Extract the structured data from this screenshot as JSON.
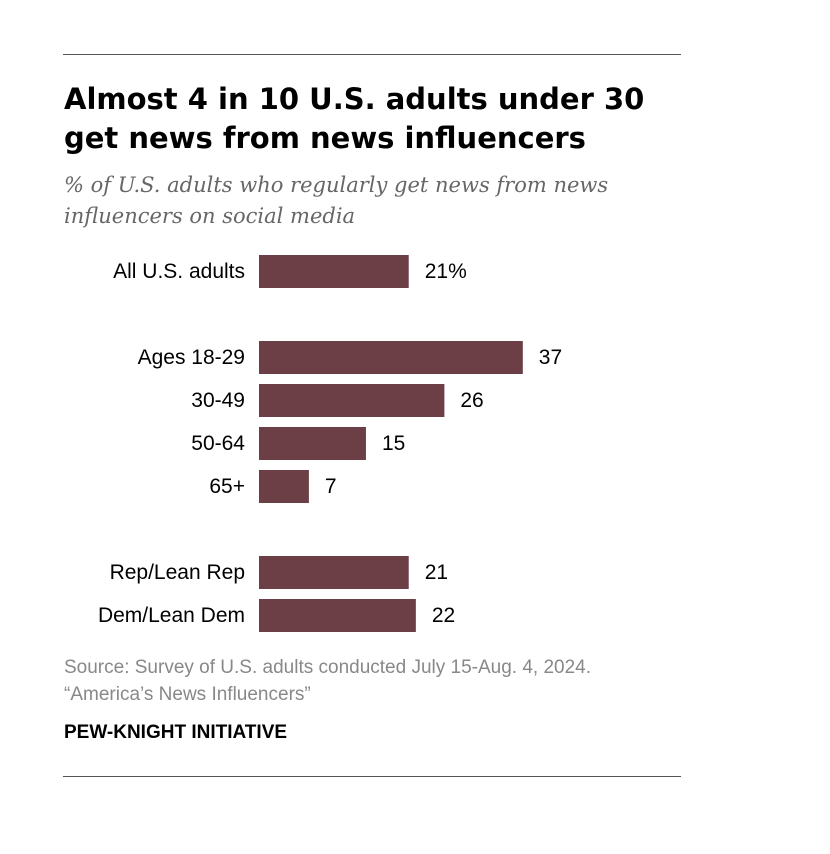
{
  "title": "Almost 4 in 10 U.S. adults under 30 get news from news influencers",
  "subtitle": "% of U.S. adults who regularly get news from news influencers on social media",
  "source_line1": "Source: Survey of U.S. adults conducted July 15-Aug. 4, 2024.",
  "source_line2": "“America’s News Influencers”",
  "organization": "PEW-KNIGHT INITIATIVE",
  "chart_data": {
    "type": "bar",
    "orientation": "horizontal",
    "bar_color": "#6b3f45",
    "categories": [
      "All U.S. adults",
      "Ages 18-29",
      "30-49",
      "50-64",
      "65+",
      "Rep/Lean Rep",
      "Dem/Lean Dem"
    ],
    "values": [
      21,
      37,
      26,
      15,
      7,
      21,
      22
    ],
    "value_labels": [
      "21%",
      "37",
      "26",
      "15",
      "7",
      "21",
      "22"
    ],
    "groups": [
      [
        "All U.S. adults"
      ],
      [
        "Ages 18-29",
        "30-49",
        "50-64",
        "65+"
      ],
      [
        "Rep/Lean Rep",
        "Dem/Lean Dem"
      ]
    ],
    "unit": "%",
    "xlim": [
      0,
      100
    ],
    "grid": false,
    "legend": "none"
  }
}
